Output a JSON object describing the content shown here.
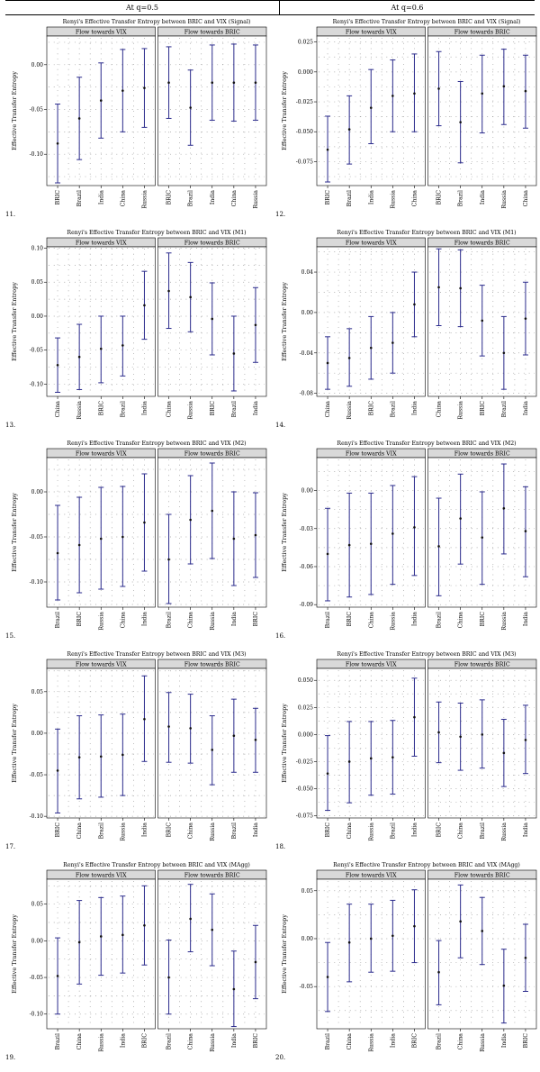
{
  "header": {
    "left": "At q=0.5",
    "right": "At q=0.6"
  },
  "palette": {
    "mark": "#2b2b8c",
    "strip_bg": "#d9d9d9",
    "grid_dot": "#888888"
  },
  "chart_data": [
    {
      "type": "errorbar",
      "number": "11.",
      "title": "Renyi's Effective Transfer Entropy between BRIC and VIX (Signal)",
      "ylabel": "Effective Transfer Entropy",
      "ylim": [
        -0.135,
        0.032
      ],
      "yticks": [
        0.0,
        -0.05,
        -0.1
      ],
      "ytick_labels": [
        "0.00",
        "-0.05",
        "-0.10"
      ],
      "panels": [
        {
          "strip": "Flow towards VIX",
          "categories": [
            "BRIC",
            "Brazil",
            "India",
            "China",
            "Russia"
          ],
          "mean": [
            -0.088,
            -0.06,
            -0.04,
            -0.029,
            -0.026
          ],
          "lower": [
            -0.132,
            -0.106,
            -0.082,
            -0.075,
            -0.07
          ],
          "upper": [
            -0.044,
            -0.014,
            0.002,
            0.017,
            0.018
          ]
        },
        {
          "strip": "Flow towards BRIC",
          "categories": [
            "BRIC",
            "Brazil",
            "India",
            "China",
            "Russia"
          ],
          "mean": [
            -0.02,
            -0.048,
            -0.02,
            -0.02,
            -0.02
          ],
          "lower": [
            -0.06,
            -0.09,
            -0.062,
            -0.063,
            -0.062
          ],
          "upper": [
            0.02,
            -0.006,
            0.022,
            0.023,
            0.022
          ]
        }
      ]
    },
    {
      "type": "errorbar",
      "number": "12.",
      "title": "Renyi's Effective Transfer Entropy between BRIC and VIX (Signal)",
      "ylabel": "Effective Transfer Entropy",
      "ylim": [
        -0.095,
        0.03
      ],
      "yticks": [
        0.025,
        0.0,
        -0.025,
        -0.05,
        -0.075
      ],
      "ytick_labels": [
        "0.025",
        "0.000",
        "-0.025",
        "-0.050",
        "-0.075"
      ],
      "panels": [
        {
          "strip": "Flow towards VIX",
          "categories": [
            "BRIC",
            "Brazil",
            "India",
            "Russia",
            "China"
          ],
          "mean": [
            -0.065,
            -0.048,
            -0.03,
            -0.02,
            -0.018
          ],
          "lower": [
            -0.092,
            -0.077,
            -0.06,
            -0.05,
            -0.05
          ],
          "upper": [
            -0.037,
            -0.02,
            0.002,
            0.01,
            0.015
          ]
        },
        {
          "strip": "Flow towards BRIC",
          "categories": [
            "BRIC",
            "Brazil",
            "India",
            "Russia",
            "China"
          ],
          "mean": [
            -0.014,
            -0.042,
            -0.018,
            -0.012,
            -0.016
          ],
          "lower": [
            -0.045,
            -0.076,
            -0.051,
            -0.044,
            -0.047
          ],
          "upper": [
            0.017,
            -0.008,
            0.014,
            0.019,
            0.014
          ]
        }
      ]
    },
    {
      "type": "errorbar",
      "number": "13.",
      "title": "Renyi's Effective Transfer Entropy between BRIC and VIX (M1)",
      "ylabel": "Effective Transfer Entropy",
      "ylim": [
        -0.118,
        0.102
      ],
      "yticks": [
        0.1,
        0.05,
        0.0,
        -0.05,
        -0.1
      ],
      "ytick_labels": [
        "0.10",
        "0.05",
        "0.00",
        "-0.05",
        "-0.10"
      ],
      "panels": [
        {
          "strip": "Flow towards VIX",
          "categories": [
            "China",
            "Russia",
            "BRIC",
            "Brazil",
            "India"
          ],
          "mean": [
            -0.072,
            -0.06,
            -0.048,
            -0.043,
            0.016
          ],
          "lower": [
            -0.112,
            -0.108,
            -0.098,
            -0.088,
            -0.034
          ],
          "upper": [
            -0.032,
            -0.012,
            0.0,
            0.0,
            0.066
          ]
        },
        {
          "strip": "Flow towards BRIC",
          "categories": [
            "China",
            "Russia",
            "BRIC",
            "Brazil",
            "India"
          ],
          "mean": [
            0.037,
            0.028,
            -0.004,
            -0.055,
            -0.013
          ],
          "lower": [
            -0.018,
            -0.023,
            -0.057,
            -0.11,
            -0.068
          ],
          "upper": [
            0.093,
            0.079,
            0.049,
            0.0,
            0.042
          ]
        }
      ]
    },
    {
      "type": "errorbar",
      "number": "14.",
      "title": "Renyi's Effective Transfer Entropy between BRIC and VIX (M1)",
      "ylabel": "Effective Transfer Entropy",
      "ylim": [
        -0.083,
        0.065
      ],
      "yticks": [
        0.04,
        0.0,
        -0.04,
        -0.08
      ],
      "ytick_labels": [
        "0.04",
        "0.00",
        "-0.04",
        "-0.08"
      ],
      "panels": [
        {
          "strip": "Flow towards VIX",
          "categories": [
            "China",
            "Russia",
            "BRIC",
            "Brazil",
            "India"
          ],
          "mean": [
            -0.05,
            -0.045,
            -0.035,
            -0.03,
            0.008
          ],
          "lower": [
            -0.076,
            -0.073,
            -0.066,
            -0.06,
            -0.024
          ],
          "upper": [
            -0.024,
            -0.016,
            -0.004,
            0.0,
            0.04
          ]
        },
        {
          "strip": "Flow towards BRIC",
          "categories": [
            "China",
            "Russia",
            "BRIC",
            "Brazil",
            "India"
          ],
          "mean": [
            0.025,
            0.024,
            -0.008,
            -0.04,
            -0.006
          ],
          "lower": [
            -0.013,
            -0.014,
            -0.043,
            -0.076,
            -0.042
          ],
          "upper": [
            0.063,
            0.062,
            0.027,
            -0.004,
            0.03
          ]
        }
      ]
    },
    {
      "type": "errorbar",
      "number": "15.",
      "title": "Renyi's Effective Transfer Entropy between BRIC and VIX (M2)",
      "ylabel": "Effective Transfer Entropy",
      "ylim": [
        -0.128,
        0.038
      ],
      "yticks": [
        0.0,
        -0.05,
        -0.1
      ],
      "ytick_labels": [
        "0.00",
        "-0.05",
        "-0.10"
      ],
      "panels": [
        {
          "strip": "Flow towards VIX",
          "categories": [
            "Brazil",
            "BRIC",
            "Russia",
            "China",
            "India"
          ],
          "mean": [
            -0.068,
            -0.059,
            -0.052,
            -0.05,
            -0.034
          ],
          "lower": [
            -0.12,
            -0.112,
            -0.108,
            -0.105,
            -0.088
          ],
          "upper": [
            -0.015,
            -0.006,
            0.005,
            0.006,
            0.02
          ]
        },
        {
          "strip": "Flow towards BRIC",
          "categories": [
            "Brazil",
            "China",
            "Russia",
            "India",
            "BRIC"
          ],
          "mean": [
            -0.075,
            -0.031,
            -0.021,
            -0.052,
            -0.048
          ],
          "lower": [
            -0.124,
            -0.08,
            -0.074,
            -0.104,
            -0.095
          ],
          "upper": [
            -0.025,
            0.018,
            0.032,
            0.0,
            -0.001
          ]
        }
      ]
    },
    {
      "type": "errorbar",
      "number": "16.",
      "title": "Renyi's Effective Transfer Entropy between BRIC and VIX (M2)",
      "ylabel": "Effective Transfer Entropy",
      "ylim": [
        -0.092,
        0.026
      ],
      "yticks": [
        0.0,
        -0.03,
        -0.06,
        -0.09
      ],
      "ytick_labels": [
        "0.00",
        "-0.03",
        "-0.06",
        "-0.09"
      ],
      "panels": [
        {
          "strip": "Flow towards VIX",
          "categories": [
            "Brazil",
            "BRIC",
            "China",
            "Russia",
            "India"
          ],
          "mean": [
            -0.05,
            -0.043,
            -0.042,
            -0.034,
            -0.029
          ],
          "lower": [
            -0.087,
            -0.084,
            -0.082,
            -0.074,
            -0.067
          ],
          "upper": [
            -0.014,
            -0.002,
            -0.002,
            0.004,
            0.011
          ]
        },
        {
          "strip": "Flow towards BRIC",
          "categories": [
            "Brazil",
            "China",
            "BRIC",
            "Russia",
            "India"
          ],
          "mean": [
            -0.044,
            -0.022,
            -0.037,
            -0.014,
            -0.032
          ],
          "lower": [
            -0.083,
            -0.058,
            -0.074,
            -0.05,
            -0.068
          ],
          "upper": [
            -0.006,
            0.013,
            -0.001,
            0.021,
            0.003
          ]
        }
      ]
    },
    {
      "type": "errorbar",
      "number": "17.",
      "title": "Renyi's Effective Transfer Entropy between BRIC and VIX (M3)",
      "ylabel": "Effective Transfer Entropy",
      "ylim": [
        -0.102,
        0.078
      ],
      "yticks": [
        0.05,
        0.0,
        -0.05,
        -0.1
      ],
      "ytick_labels": [
        "0.05",
        "0.00",
        "-0.05",
        "-0.10"
      ],
      "panels": [
        {
          "strip": "Flow towards VIX",
          "categories": [
            "BRIC",
            "China",
            "Brazil",
            "Russia",
            "India"
          ],
          "mean": [
            -0.045,
            -0.029,
            -0.028,
            -0.026,
            0.017
          ],
          "lower": [
            -0.096,
            -0.079,
            -0.077,
            -0.075,
            -0.034
          ],
          "upper": [
            0.005,
            0.021,
            0.022,
            0.023,
            0.069
          ]
        },
        {
          "strip": "Flow towards BRIC",
          "categories": [
            "BRIC",
            "China",
            "Russia",
            "Brazil",
            "India"
          ],
          "mean": [
            0.008,
            0.006,
            -0.02,
            -0.003,
            -0.008
          ],
          "lower": [
            -0.035,
            -0.036,
            -0.062,
            -0.047,
            -0.047
          ],
          "upper": [
            0.049,
            0.047,
            0.021,
            0.041,
            0.03
          ]
        }
      ]
    },
    {
      "type": "errorbar",
      "number": "18.",
      "title": "Renyi's Effective Transfer Entropy between BRIC and VIX (M3)",
      "ylabel": "Effective Transfer Entropy",
      "ylim": [
        -0.077,
        0.061
      ],
      "yticks": [
        0.05,
        0.025,
        0.0,
        -0.025,
        -0.05,
        -0.075
      ],
      "ytick_labels": [
        "0.050",
        "0.025",
        "0.000",
        "-0.025",
        "-0.050",
        "-0.075"
      ],
      "panels": [
        {
          "strip": "Flow towards VIX",
          "categories": [
            "BRIC",
            "China",
            "Russia",
            "Brazil",
            "India"
          ],
          "mean": [
            -0.036,
            -0.025,
            -0.022,
            -0.021,
            0.016
          ],
          "lower": [
            -0.07,
            -0.063,
            -0.056,
            -0.055,
            -0.02
          ],
          "upper": [
            -0.001,
            0.012,
            0.012,
            0.013,
            0.052
          ]
        },
        {
          "strip": "Flow towards BRIC",
          "categories": [
            "BRIC",
            "China",
            "Brazil",
            "Russia",
            "India"
          ],
          "mean": [
            0.002,
            -0.002,
            0.0,
            -0.017,
            -0.005
          ],
          "lower": [
            -0.026,
            -0.033,
            -0.031,
            -0.048,
            -0.036
          ],
          "upper": [
            0.03,
            0.029,
            0.032,
            0.014,
            0.027
          ]
        }
      ]
    },
    {
      "type": "errorbar",
      "number": "19.",
      "title": "Renyi's Effective Transfer Entropy between BRIC and VIX (MAgg)",
      "ylabel": "Effective Transfer Entropy",
      "ylim": [
        -0.12,
        0.084
      ],
      "yticks": [
        0.05,
        0.0,
        -0.05,
        -0.1
      ],
      "ytick_labels": [
        "0.05",
        "0.00",
        "-0.05",
        "-0.10"
      ],
      "panels": [
        {
          "strip": "Flow towards VIX",
          "categories": [
            "Brazil",
            "China",
            "Russia",
            "India",
            "BRIC"
          ],
          "mean": [
            -0.048,
            -0.002,
            0.006,
            0.008,
            0.021
          ],
          "lower": [
            -0.1,
            -0.059,
            -0.047,
            -0.044,
            -0.033
          ],
          "upper": [
            0.004,
            0.055,
            0.059,
            0.061,
            0.075
          ]
        },
        {
          "strip": "Flow towards BRIC",
          "categories": [
            "Brazil",
            "China",
            "Russia",
            "India",
            "BRIC"
          ],
          "mean": [
            -0.05,
            0.03,
            0.015,
            -0.066,
            -0.029
          ],
          "lower": [
            -0.1,
            -0.015,
            -0.034,
            -0.117,
            -0.079
          ],
          "upper": [
            0.001,
            0.077,
            0.064,
            -0.014,
            0.021
          ]
        }
      ]
    },
    {
      "type": "errorbar",
      "number": "20.",
      "title": "Renyi's Effective Transfer Entropy between BRIC and VIX (MAgg)",
      "ylabel": "Effective Transfer Entropy",
      "ylim": [
        -0.094,
        0.062
      ],
      "yticks": [
        0.05,
        0.0,
        -0.05
      ],
      "ytick_labels": [
        "0.05",
        "0.00",
        "-0.05"
      ],
      "panels": [
        {
          "strip": "Flow towards VIX",
          "categories": [
            "Brazil",
            "China",
            "Russia",
            "India",
            "BRIC"
          ],
          "mean": [
            -0.04,
            -0.004,
            0.0,
            0.003,
            0.013
          ],
          "lower": [
            -0.076,
            -0.045,
            -0.035,
            -0.034,
            -0.025
          ],
          "upper": [
            -0.004,
            0.036,
            0.036,
            0.04,
            0.051
          ]
        },
        {
          "strip": "Flow towards BRIC",
          "categories": [
            "Brazil",
            "China",
            "Russia",
            "India",
            "BRIC"
          ],
          "mean": [
            -0.035,
            0.018,
            0.008,
            -0.049,
            -0.02
          ],
          "lower": [
            -0.069,
            -0.02,
            -0.027,
            -0.088,
            -0.055
          ],
          "upper": [
            -0.002,
            0.056,
            0.043,
            -0.011,
            0.015
          ]
        }
      ]
    }
  ]
}
